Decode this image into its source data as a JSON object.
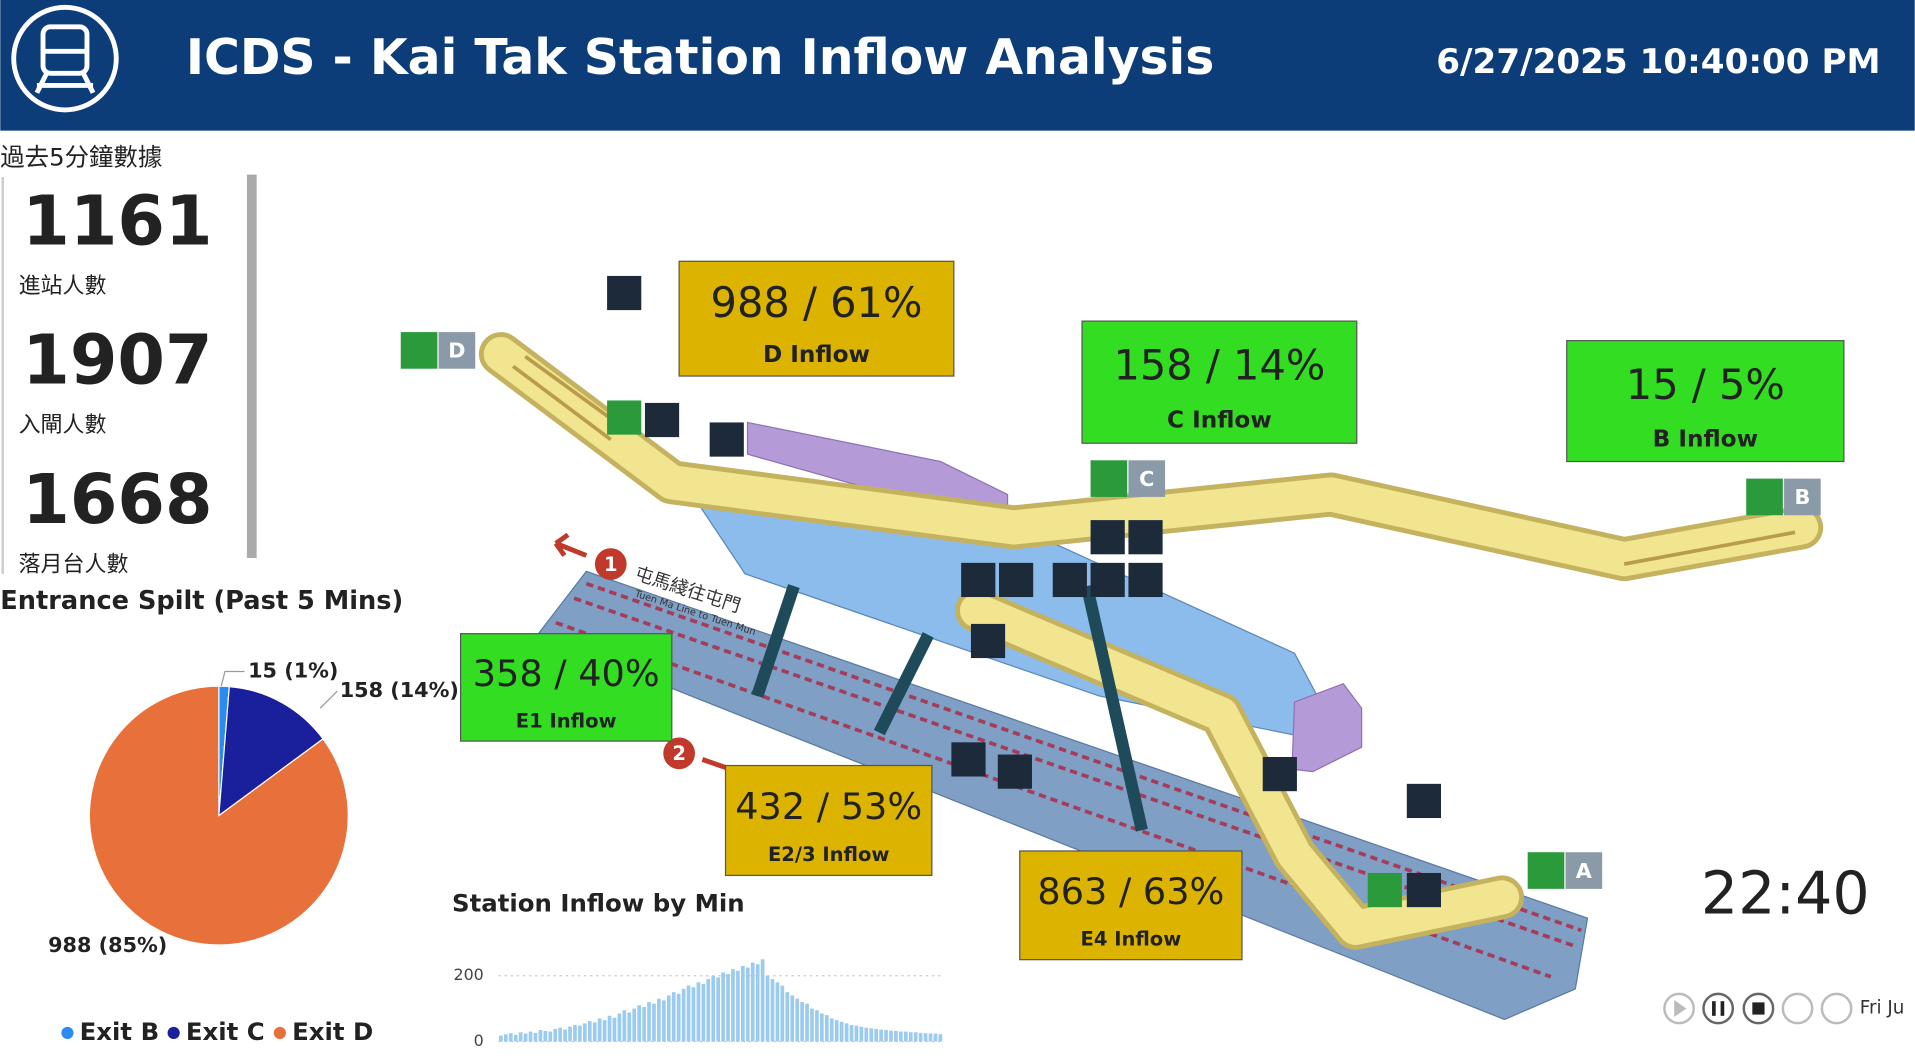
{
  "header": {
    "title": "ICDS - Kai Tak Station Inflow Analysis",
    "datetime": "6/27/2025 10:40:00 PM"
  },
  "kpis": {
    "title": "過去5分鐘數據",
    "items": [
      {
        "value": 1161,
        "label": "進站人數"
      },
      {
        "value": 1907,
        "label": "入閘人數"
      },
      {
        "value": 1668,
        "label": "落月台人數"
      }
    ]
  },
  "chart_data": [
    {
      "type": "pie",
      "title": "Entrance Spilt (Past 5 Mins)",
      "categories": [
        "Exit B",
        "Exit C",
        "Exit D"
      ],
      "values": [
        15,
        158,
        988
      ],
      "value_labels": [
        "15 (1%)",
        "158 (14%)",
        "988 (85%)"
      ],
      "colors": [
        "#2a8cf0",
        "#1a1f9c",
        "#e8703a"
      ],
      "legend": "bottom"
    },
    {
      "type": "bar",
      "title": "Station Inflow by Min",
      "color": "#9ccbf0",
      "values": [
        18,
        22,
        25,
        20,
        28,
        24,
        30,
        26,
        35,
        32,
        30,
        38,
        42,
        36,
        45,
        50,
        48,
        55,
        62,
        58,
        70,
        65,
        78,
        72,
        85,
        95,
        88,
        100,
        110,
        105,
        120,
        115,
        130,
        125,
        140,
        150,
        145,
        160,
        170,
        165,
        180,
        175,
        190,
        200,
        195,
        210,
        205,
        220,
        215,
        230,
        225,
        240,
        235,
        250,
        200,
        190,
        180,
        170,
        150,
        140,
        130,
        120,
        115,
        100,
        95,
        85,
        80,
        70,
        65,
        60,
        55,
        50,
        48,
        45,
        42,
        40,
        38,
        36,
        35,
        33,
        32,
        30,
        30,
        28,
        28,
        26,
        25,
        24,
        24,
        22
      ],
      "ylim": [
        0,
        260
      ],
      "yticks": [
        0,
        200
      ],
      "grid": true
    }
  ],
  "map": {
    "inflow_boxes": [
      {
        "value_text": "988 / 61%",
        "label": "D Inflow",
        "color": "#dcb400"
      },
      {
        "value_text": "158 / 14%",
        "label": "C Inflow",
        "color": "#33dd22"
      },
      {
        "value_text": "15 / 5%",
        "label": "B Inflow",
        "color": "#33dd22"
      },
      {
        "value_text": "358 / 40%",
        "label": "E1 Inflow",
        "color": "#33dd22"
      },
      {
        "value_text": "432 / 53%",
        "label": "E2/3 Inflow",
        "color": "#dcb400"
      },
      {
        "value_text": "863 / 63%",
        "label": "E4 Inflow",
        "color": "#dcb400"
      }
    ],
    "exits": [
      "D",
      "C",
      "B",
      "A"
    ],
    "platform_markers": [
      "1",
      "2"
    ],
    "line_label_zh": "屯馬綫往屯門",
    "line_label_en": "Tuen Ma Line to Tuen Mun"
  },
  "clock": "22:40",
  "player_date": "Fri Ju"
}
